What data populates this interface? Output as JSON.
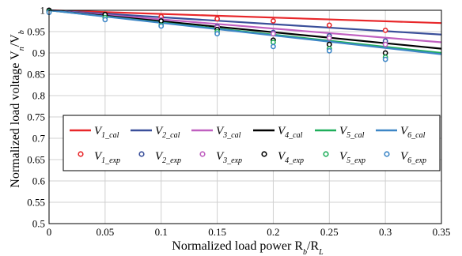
{
  "chart_data": {
    "type": "line",
    "xlabel": "Normalized load power R",
    "xlabel_sub1": "b",
    "xlabel_mid": "/R",
    "xlabel_sub2": "L",
    "ylabel": "Normalized load voltage V",
    "ylabel_sub1": "n",
    "ylabel_mid": "/V",
    "ylabel_sub2": "b",
    "xlim": [
      0,
      0.35
    ],
    "ylim": [
      0.5,
      1
    ],
    "xticks": [
      "0",
      "0.05",
      "0.1",
      "0.15",
      "0.2",
      "0.25",
      "0.3",
      "0.35"
    ],
    "yticks": [
      "0.5",
      "0.55",
      "0.6",
      "0.65",
      "0.7",
      "0.75",
      "0.8",
      "0.85",
      "0.9",
      "0.95",
      "1"
    ],
    "grid": true,
    "legend_position": "middle",
    "calculated": [
      {
        "base": "V",
        "sub": "1_cal",
        "color": "#e8272a",
        "x": [
          0,
          0.35
        ],
        "y": [
          1.0,
          0.97
        ]
      },
      {
        "base": "V",
        "sub": "2_cal",
        "color": "#3a4f9a",
        "x": [
          0,
          0.35
        ],
        "y": [
          1.0,
          0.943
        ]
      },
      {
        "base": "V",
        "sub": "3_cal",
        "color": "#c060c0",
        "x": [
          0,
          0.35
        ],
        "y": [
          1.0,
          0.925
        ]
      },
      {
        "base": "V",
        "sub": "4_cal",
        "color": "#000000",
        "x": [
          0,
          0.35
        ],
        "y": [
          1.0,
          0.91
        ]
      },
      {
        "base": "V",
        "sub": "5_cal",
        "color": "#1fae5a",
        "x": [
          0,
          0.35
        ],
        "y": [
          1.0,
          0.9
        ]
      },
      {
        "base": "V",
        "sub": "6_cal",
        "color": "#3d86c6",
        "x": [
          0,
          0.35
        ],
        "y": [
          1.0,
          0.897
        ]
      }
    ],
    "experimental": [
      {
        "base": "V",
        "sub": "1_exp",
        "color": "#e8272a",
        "x": [
          0,
          0.05,
          0.1,
          0.15,
          0.2,
          0.25,
          0.3
        ],
        "y": [
          1.0,
          0.99,
          0.985,
          0.98,
          0.975,
          0.965,
          0.953
        ]
      },
      {
        "base": "V",
        "sub": "2_exp",
        "color": "#3a4f9a",
        "x": [
          0,
          0.05,
          0.1,
          0.15,
          0.2,
          0.25,
          0.3
        ],
        "y": [
          1.0,
          0.985,
          0.975,
          0.962,
          0.948,
          0.94,
          0.928
        ]
      },
      {
        "base": "V",
        "sub": "3_exp",
        "color": "#c060c0",
        "x": [
          0,
          0.05,
          0.1,
          0.15,
          0.2,
          0.25,
          0.3
        ],
        "y": [
          1.0,
          0.985,
          0.978,
          0.96,
          0.945,
          0.935,
          0.92
        ]
      },
      {
        "base": "V",
        "sub": "4_exp",
        "color": "#000000",
        "x": [
          0,
          0.05,
          0.1,
          0.15,
          0.2,
          0.25,
          0.3
        ],
        "y": [
          1.0,
          0.99,
          0.975,
          0.955,
          0.93,
          0.92,
          0.9
        ]
      },
      {
        "base": "V",
        "sub": "5_exp",
        "color": "#1fae5a",
        "x": [
          0,
          0.05,
          0.1,
          0.15,
          0.2,
          0.25,
          0.3
        ],
        "y": [
          0.997,
          0.983,
          0.965,
          0.95,
          0.925,
          0.91,
          0.89
        ]
      },
      {
        "base": "V",
        "sub": "6_exp",
        "color": "#3d86c6",
        "x": [
          0,
          0.05,
          0.1,
          0.15,
          0.2,
          0.25,
          0.3
        ],
        "y": [
          0.995,
          0.978,
          0.963,
          0.945,
          0.915,
          0.905,
          0.885
        ]
      }
    ]
  }
}
